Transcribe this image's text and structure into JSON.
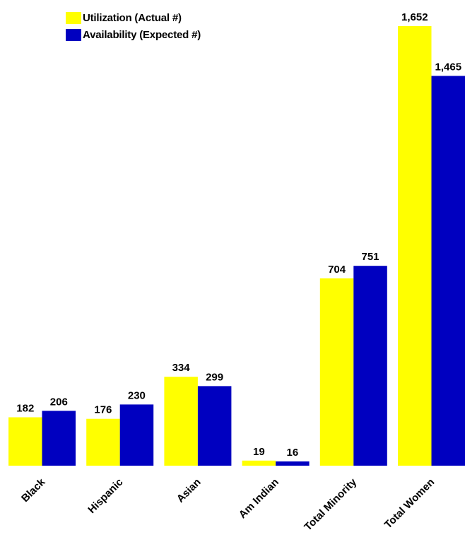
{
  "chart_data": {
    "type": "bar",
    "categories": [
      "Black",
      "Hispanic",
      "Asian",
      "Am Indian",
      "Total Minority",
      "Total Women"
    ],
    "series": [
      {
        "name": "Utilization (Actual #)",
        "color": "#ffff00",
        "values": [
          182,
          176,
          334,
          19,
          704,
          1652
        ]
      },
      {
        "name": "Availability (Expected #)",
        "color": "#0000c0",
        "values": [
          206,
          230,
          299,
          16,
          751,
          1465
        ]
      }
    ],
    "data_labels": [
      [
        "182",
        "176",
        "334",
        "19",
        "704",
        "1,652"
      ],
      [
        "206",
        "230",
        "299",
        "16",
        "751",
        "1,465"
      ]
    ],
    "ylim": [
      0,
      1652
    ],
    "grid": false,
    "legend_position": "top-left",
    "title": "",
    "xlabel": "",
    "ylabel": ""
  }
}
